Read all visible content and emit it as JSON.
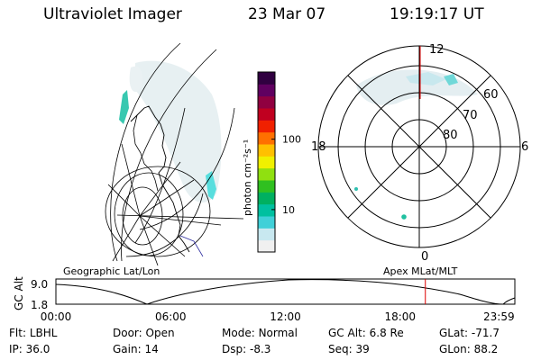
{
  "header": {
    "instrument": "Ultraviolet Imager",
    "date": "23 Mar 07",
    "time": "19:19:17 UT"
  },
  "colorbar": {
    "unit_label": "photon cm⁻²s⁻¹",
    "ticks": [
      "100",
      "10"
    ],
    "tick_values": [
      100,
      10
    ],
    "range": [
      2.5,
      900
    ],
    "scale": "log",
    "colors": [
      "#f0f0f0",
      "#c8e8f0",
      "#40d0d8",
      "#00c0a0",
      "#00b060",
      "#30c020",
      "#90e010",
      "#f0f000",
      "#ffc000",
      "#ff7000",
      "#f02000",
      "#c00020",
      "#900040",
      "#600060",
      "#300040"
    ]
  },
  "left_map": {
    "label": "Geographic Lat/Lon"
  },
  "polar_map": {
    "label": "Apex MLat/MLT",
    "mlt_labels": {
      "top": "12",
      "left": "18",
      "right": "6",
      "bottom": "0"
    },
    "lat_labels": [
      "60",
      "70",
      "80"
    ]
  },
  "orbit_plot": {
    "ylabel": "GC Alt",
    "yticks": [
      "9.0",
      "1.8"
    ],
    "xticks": [
      "00:00",
      "06:00",
      "12:00",
      "18:00",
      "23:59"
    ],
    "current_time_hours": 19.32,
    "marker_color": "#dd0000"
  },
  "info": {
    "row1": [
      {
        "key": "Flt:",
        "value": "LBHL"
      },
      {
        "key": "Door:",
        "value": "Open"
      },
      {
        "key": "Mode:",
        "value": "Normal"
      },
      {
        "key": "GC Alt:",
        "value": "6.8 Re"
      },
      {
        "key": "GLat:",
        "value": "-71.7"
      }
    ],
    "row2": [
      {
        "key": "IP:",
        "value": "36.0"
      },
      {
        "key": "Gain:",
        "value": "14"
      },
      {
        "key": "Dsp:",
        "value": "-8.3"
      },
      {
        "key": "Seq:",
        "value": "39"
      },
      {
        "key": "GLon:",
        "value": "88.2"
      }
    ]
  }
}
